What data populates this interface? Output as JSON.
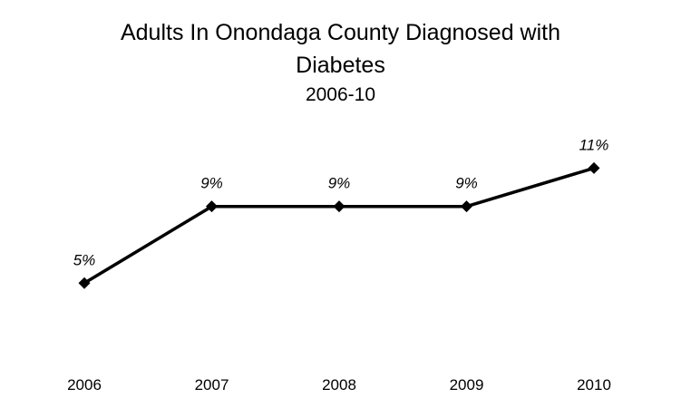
{
  "chart_data": {
    "type": "line",
    "title_line1": "Adults In Onondaga County Diagnosed with",
    "title_line2": "Diabetes",
    "subtitle": "2006-10",
    "xlabel": "",
    "ylabel": "",
    "categories": [
      "2006",
      "2007",
      "2008",
      "2009",
      "2010"
    ],
    "series": [
      {
        "values": [
          5,
          9,
          9,
          9,
          11
        ],
        "data_labels": [
          "5%",
          "9%",
          "9%",
          "9%",
          "11%"
        ],
        "color": "#000000",
        "marker": "diamond"
      }
    ],
    "ylim": [
      0,
      14
    ],
    "grid": false,
    "legend": "none"
  }
}
